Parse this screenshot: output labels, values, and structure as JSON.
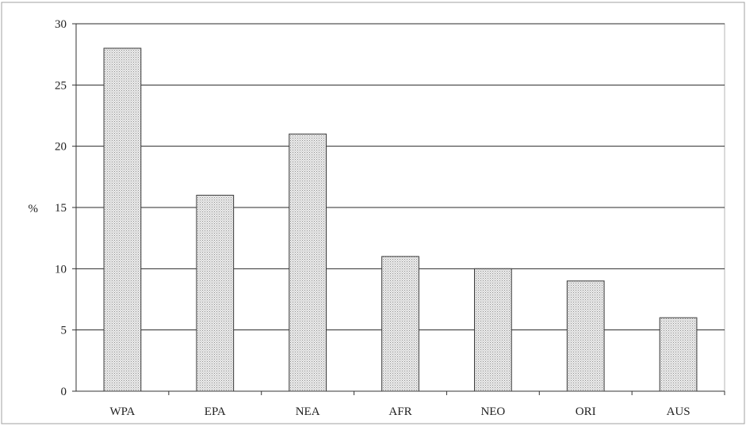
{
  "chart_data": {
    "type": "bar",
    "title": "",
    "xlabel": "",
    "ylabel": "%",
    "ylim": [
      0,
      30
    ],
    "yticks": [
      0,
      5,
      10,
      15,
      20,
      25,
      30
    ],
    "grid": true,
    "categories": [
      "WPA",
      "EPA",
      "NEA",
      "AFR",
      "NEO",
      "ORI",
      "AUS"
    ],
    "values": [
      28,
      16,
      21,
      11,
      10,
      9,
      6
    ],
    "colors": {
      "bar_fill": "#d9d9d9",
      "bar_stroke": "#3a3a3a",
      "gridline": "#2a2a2a",
      "frame": "#9a9a9a"
    }
  }
}
